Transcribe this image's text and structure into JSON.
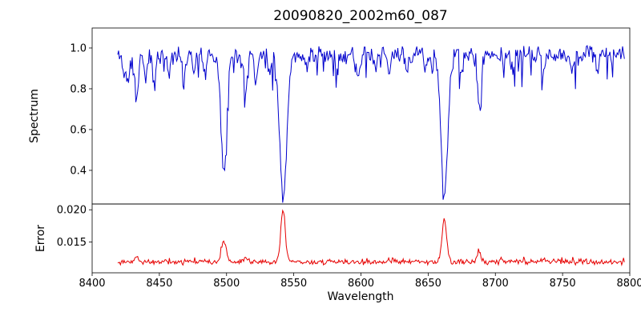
{
  "chart_data": {
    "type": "line",
    "title": "20090820_2002m60_087",
    "xlabel": "Wavelength",
    "xlim": [
      8400,
      8800
    ],
    "xticks": [
      8400,
      8450,
      8500,
      8550,
      8600,
      8650,
      8700,
      8750,
      8800
    ],
    "grid": false,
    "legend": "none",
    "x_sampling": {
      "start": 8419,
      "end": 8796,
      "n": 560,
      "seed": 11
    },
    "panels": [
      {
        "name": "spectrum",
        "ylabel": "Spectrum",
        "line_color": "#0000cd",
        "ylim": [
          0.235,
          1.098
        ],
        "yticks": [
          {
            "value": 1.0,
            "label": "1.0"
          },
          {
            "value": 0.8,
            "label": "0.8"
          },
          {
            "value": 0.6,
            "label": "0.6"
          },
          {
            "value": 0.4,
            "label": "0.4"
          }
        ],
        "continuum": 0.965,
        "noise": 0.05,
        "dip_prob": 0.12,
        "dip_max": 0.13,
        "clip_max": 1.035,
        "absorption_lines": [
          {
            "center": 8424,
            "depth": 0.1,
            "sigma": 1.0
          },
          {
            "center": 8427,
            "depth": 0.14,
            "sigma": 1.1
          },
          {
            "center": 8433,
            "depth": 0.22,
            "sigma": 1.2
          },
          {
            "center": 8440,
            "depth": 0.12,
            "sigma": 1.0
          },
          {
            "center": 8446,
            "depth": 0.13,
            "sigma": 1.0
          },
          {
            "center": 8457,
            "depth": 0.08,
            "sigma": 1.0
          },
          {
            "center": 8468,
            "depth": 0.13,
            "sigma": 1.1
          },
          {
            "center": 8476,
            "depth": 0.09,
            "sigma": 1.0
          },
          {
            "center": 8484,
            "depth": 0.09,
            "sigma": 1.0
          },
          {
            "center": 8498.0,
            "depth": 0.545,
            "sigma": 2.2
          },
          {
            "center": 8514,
            "depth": 0.17,
            "sigma": 1.1
          },
          {
            "center": 8522,
            "depth": 0.14,
            "sigma": 1.0
          },
          {
            "center": 8532,
            "depth": 0.08,
            "sigma": 1.0
          },
          {
            "center": 8542.1,
            "depth": 0.7,
            "sigma": 2.6
          },
          {
            "center": 8560,
            "depth": 0.07,
            "sigma": 1.0
          },
          {
            "center": 8582,
            "depth": 0.09,
            "sigma": 1.0
          },
          {
            "center": 8598,
            "depth": 0.11,
            "sigma": 1.0
          },
          {
            "center": 8611,
            "depth": 0.08,
            "sigma": 1.0
          },
          {
            "center": 8621,
            "depth": 0.1,
            "sigma": 1.0
          },
          {
            "center": 8634,
            "depth": 0.07,
            "sigma": 1.0
          },
          {
            "center": 8648,
            "depth": 0.09,
            "sigma": 1.0
          },
          {
            "center": 8662.1,
            "depth": 0.7,
            "sigma": 2.4
          },
          {
            "center": 8675,
            "depth": 0.09,
            "sigma": 1.0
          },
          {
            "center": 8688,
            "depth": 0.27,
            "sigma": 1.3
          },
          {
            "center": 8713,
            "depth": 0.08,
            "sigma": 1.0
          },
          {
            "center": 8736,
            "depth": 0.1,
            "sigma": 1.0
          },
          {
            "center": 8757,
            "depth": 0.08,
            "sigma": 1.0
          },
          {
            "center": 8776,
            "depth": 0.07,
            "sigma": 1.0
          }
        ]
      },
      {
        "name": "error",
        "ylabel": "Error",
        "line_color": "#e60000",
        "ylim": [
          0.0102,
          0.0209
        ],
        "yticks": [
          {
            "value": 0.02,
            "label": "0.020"
          },
          {
            "value": 0.015,
            "label": "0.015"
          }
        ],
        "baseline": 0.0119,
        "noise": 0.0005,
        "spike_prob": 0.08,
        "spike_max": 0.0007,
        "peaks": [
          {
            "center": 8433,
            "height": 0.0008,
            "sigma": 1.2
          },
          {
            "center": 8498,
            "height": 0.0033,
            "sigma": 1.8
          },
          {
            "center": 8514,
            "height": 0.0009,
            "sigma": 1.1
          },
          {
            "center": 8542,
            "height": 0.008,
            "sigma": 1.7
          },
          {
            "center": 8662,
            "height": 0.0067,
            "sigma": 1.7
          },
          {
            "center": 8688,
            "height": 0.0018,
            "sigma": 1.2
          },
          {
            "center": 8736,
            "height": 0.0005,
            "sigma": 1.0
          }
        ]
      }
    ]
  }
}
